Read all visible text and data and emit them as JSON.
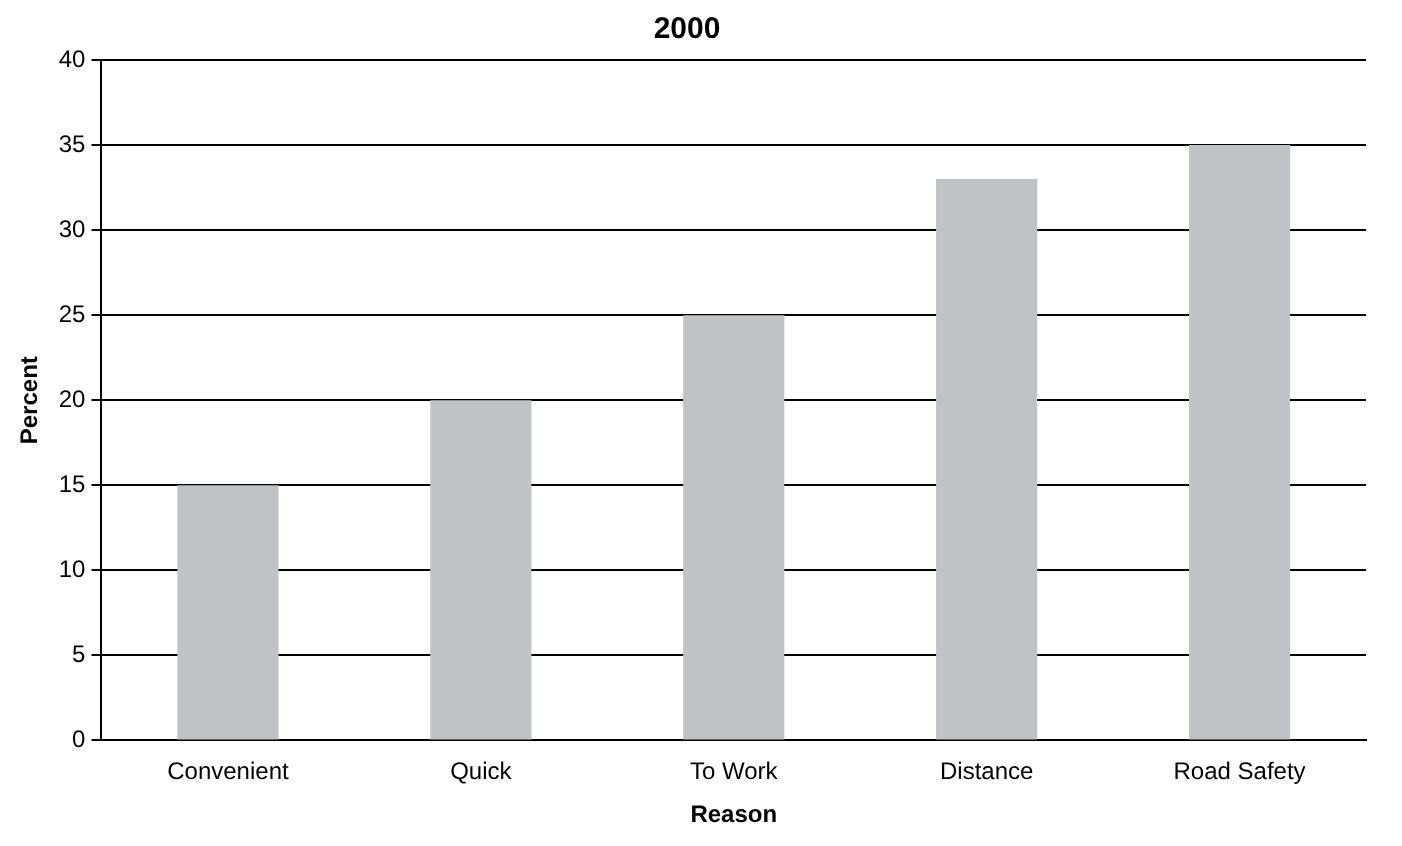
{
  "chart_data": {
    "type": "bar",
    "title": "2000",
    "xlabel": "Reason",
    "ylabel": "Percent",
    "categories": [
      "Convenient",
      "Quick",
      "To Work",
      "Distance",
      "Road Safety"
    ],
    "values": [
      15,
      20,
      25,
      33,
      35
    ],
    "color": "#c0c3c5",
    "ylim": [
      0,
      40
    ],
    "yticks": [
      0,
      5,
      10,
      15,
      20,
      25,
      30,
      35,
      40
    ],
    "grid": "y",
    "legend": false
  }
}
